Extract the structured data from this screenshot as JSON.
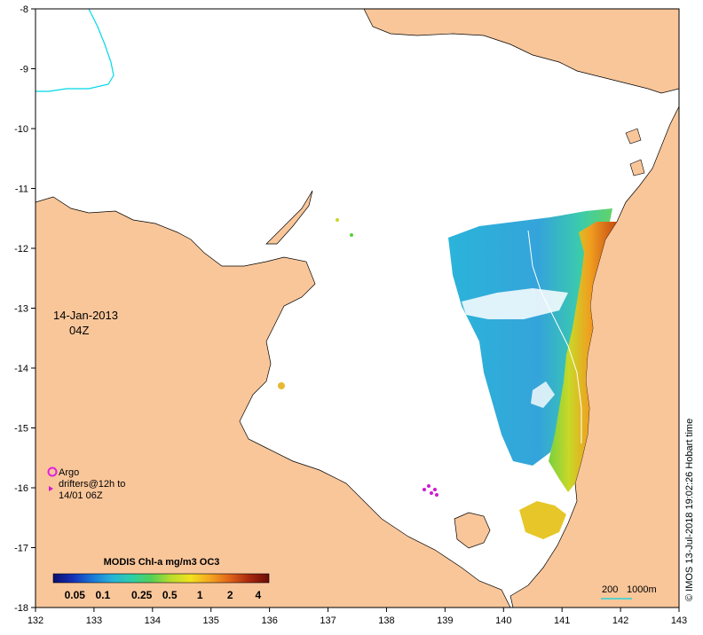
{
  "date": "14-Jan-2013",
  "time": "04Z",
  "legend": {
    "title": "MODIS Chl-a mg/m3 OC3",
    "ticks": [
      "0.05",
      "0.1",
      "0.25",
      "0.5",
      "1",
      "2",
      "4"
    ],
    "ramp": [
      "#0a0f6e",
      "#1530b8",
      "#1a78d8",
      "#27b3d8",
      "#2ccfa8",
      "#55d055",
      "#b9dc2e",
      "#f2e21e",
      "#f4a621",
      "#e0641a",
      "#a8280e",
      "#6b0c08"
    ]
  },
  "markers": {
    "argo_label": "Argo",
    "drifter_label_1": "drifters@12h to",
    "drifter_label_2": "14/01 06Z"
  },
  "scale_bar": {
    "label_200": "200",
    "label_1000": "1000m"
  },
  "credit": "© IMOS 13-Jul-2018 19:02:26 Hobart time",
  "axes": {
    "x_ticks": [
      "132",
      "133",
      "134",
      "135",
      "136",
      "137",
      "138",
      "139",
      "140",
      "141",
      "142",
      "143"
    ],
    "y_ticks": [
      "-8",
      "-9",
      "-10",
      "-11",
      "-12",
      "-13",
      "-14",
      "-15",
      "-16",
      "-17",
      "-18"
    ]
  },
  "colors": {
    "land": "#f9c69a",
    "sea": "#ffffff",
    "shallow_contour": "#00d8e8",
    "argo": "#e020e0",
    "drifter": "#d018d0"
  }
}
